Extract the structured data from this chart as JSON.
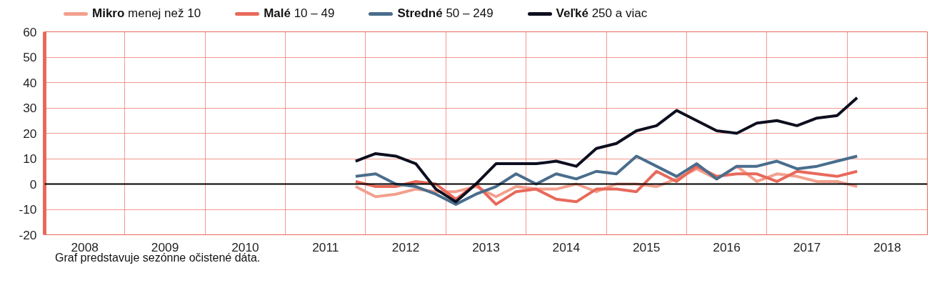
{
  "chart_data": {
    "type": "line",
    "x": [
      2011.875,
      2012.125,
      2012.375,
      2012.625,
      2012.875,
      2013.125,
      2013.375,
      2013.625,
      2013.875,
      2014.125,
      2014.375,
      2014.625,
      2014.875,
      2015.125,
      2015.375,
      2015.625,
      2015.875,
      2016.125,
      2016.375,
      2016.625,
      2016.875,
      2017.125,
      2017.375,
      2017.625,
      2017.875,
      2018.125
    ],
    "series": [
      {
        "name": "Mikro menej než 10",
        "color": "#f2a08e",
        "values": [
          -1,
          -5,
          -4,
          -2,
          -3,
          -3,
          -1,
          -5,
          -1,
          -2,
          -2,
          0,
          -3,
          0,
          0,
          -1,
          2,
          6,
          2,
          7,
          1,
          4,
          3,
          1,
          1,
          -1
        ]
      },
      {
        "name": "Malé 10 – 49",
        "color": "#e8695a",
        "values": [
          1,
          -1,
          -1,
          1,
          0,
          -6,
          0,
          -8,
          -3,
          -2,
          -6,
          -7,
          -2,
          -2,
          -3,
          5,
          1,
          7,
          3,
          4,
          4,
          1,
          5,
          4,
          3,
          5
        ]
      },
      {
        "name": "Stredné 50 – 249",
        "color": "#4a6d8c",
        "values": [
          3,
          4,
          0,
          -1,
          -4,
          -8,
          -4,
          -1,
          4,
          0,
          4,
          2,
          5,
          4,
          11,
          7,
          3,
          8,
          2,
          7,
          7,
          9,
          6,
          7,
          9,
          11
        ]
      },
      {
        "name": "Veľké 250 a viac",
        "color": "#0d0f1f",
        "values": [
          9,
          12,
          11,
          8,
          -2,
          -7,
          0,
          8,
          8,
          8,
          9,
          7,
          14,
          16,
          21,
          23,
          29,
          25,
          21,
          20,
          24,
          25,
          23,
          26,
          27,
          34
        ]
      }
    ],
    "xlim": [
      2008,
      2019
    ],
    "xticks": [
      {
        "value": 2008.5,
        "label": "2008"
      },
      {
        "value": 2009.5,
        "label": "2009"
      },
      {
        "value": 2010.5,
        "label": "2010"
      },
      {
        "value": 2011.5,
        "label": "2011"
      },
      {
        "value": 2012.5,
        "label": "2012"
      },
      {
        "value": 2013.5,
        "label": "2013"
      },
      {
        "value": 2014.5,
        "label": "2014"
      },
      {
        "value": 2015.5,
        "label": "2015"
      },
      {
        "value": 2016.5,
        "label": "2016"
      },
      {
        "value": 2017.5,
        "label": "2017"
      },
      {
        "value": 2018.5,
        "label": "2018"
      }
    ],
    "ylim": [
      -20,
      60
    ],
    "yticks": [
      -20,
      -10,
      0,
      10,
      20,
      30,
      40,
      50,
      60
    ],
    "ref_lines": [
      {
        "axis": "y",
        "value": 0,
        "color": "#000000"
      }
    ],
    "grid": true,
    "legend": "top",
    "line_style": "solid",
    "marker": "none",
    "annotations": [
      "Graf predstavuje sezónne očistené dáta."
    ]
  }
}
